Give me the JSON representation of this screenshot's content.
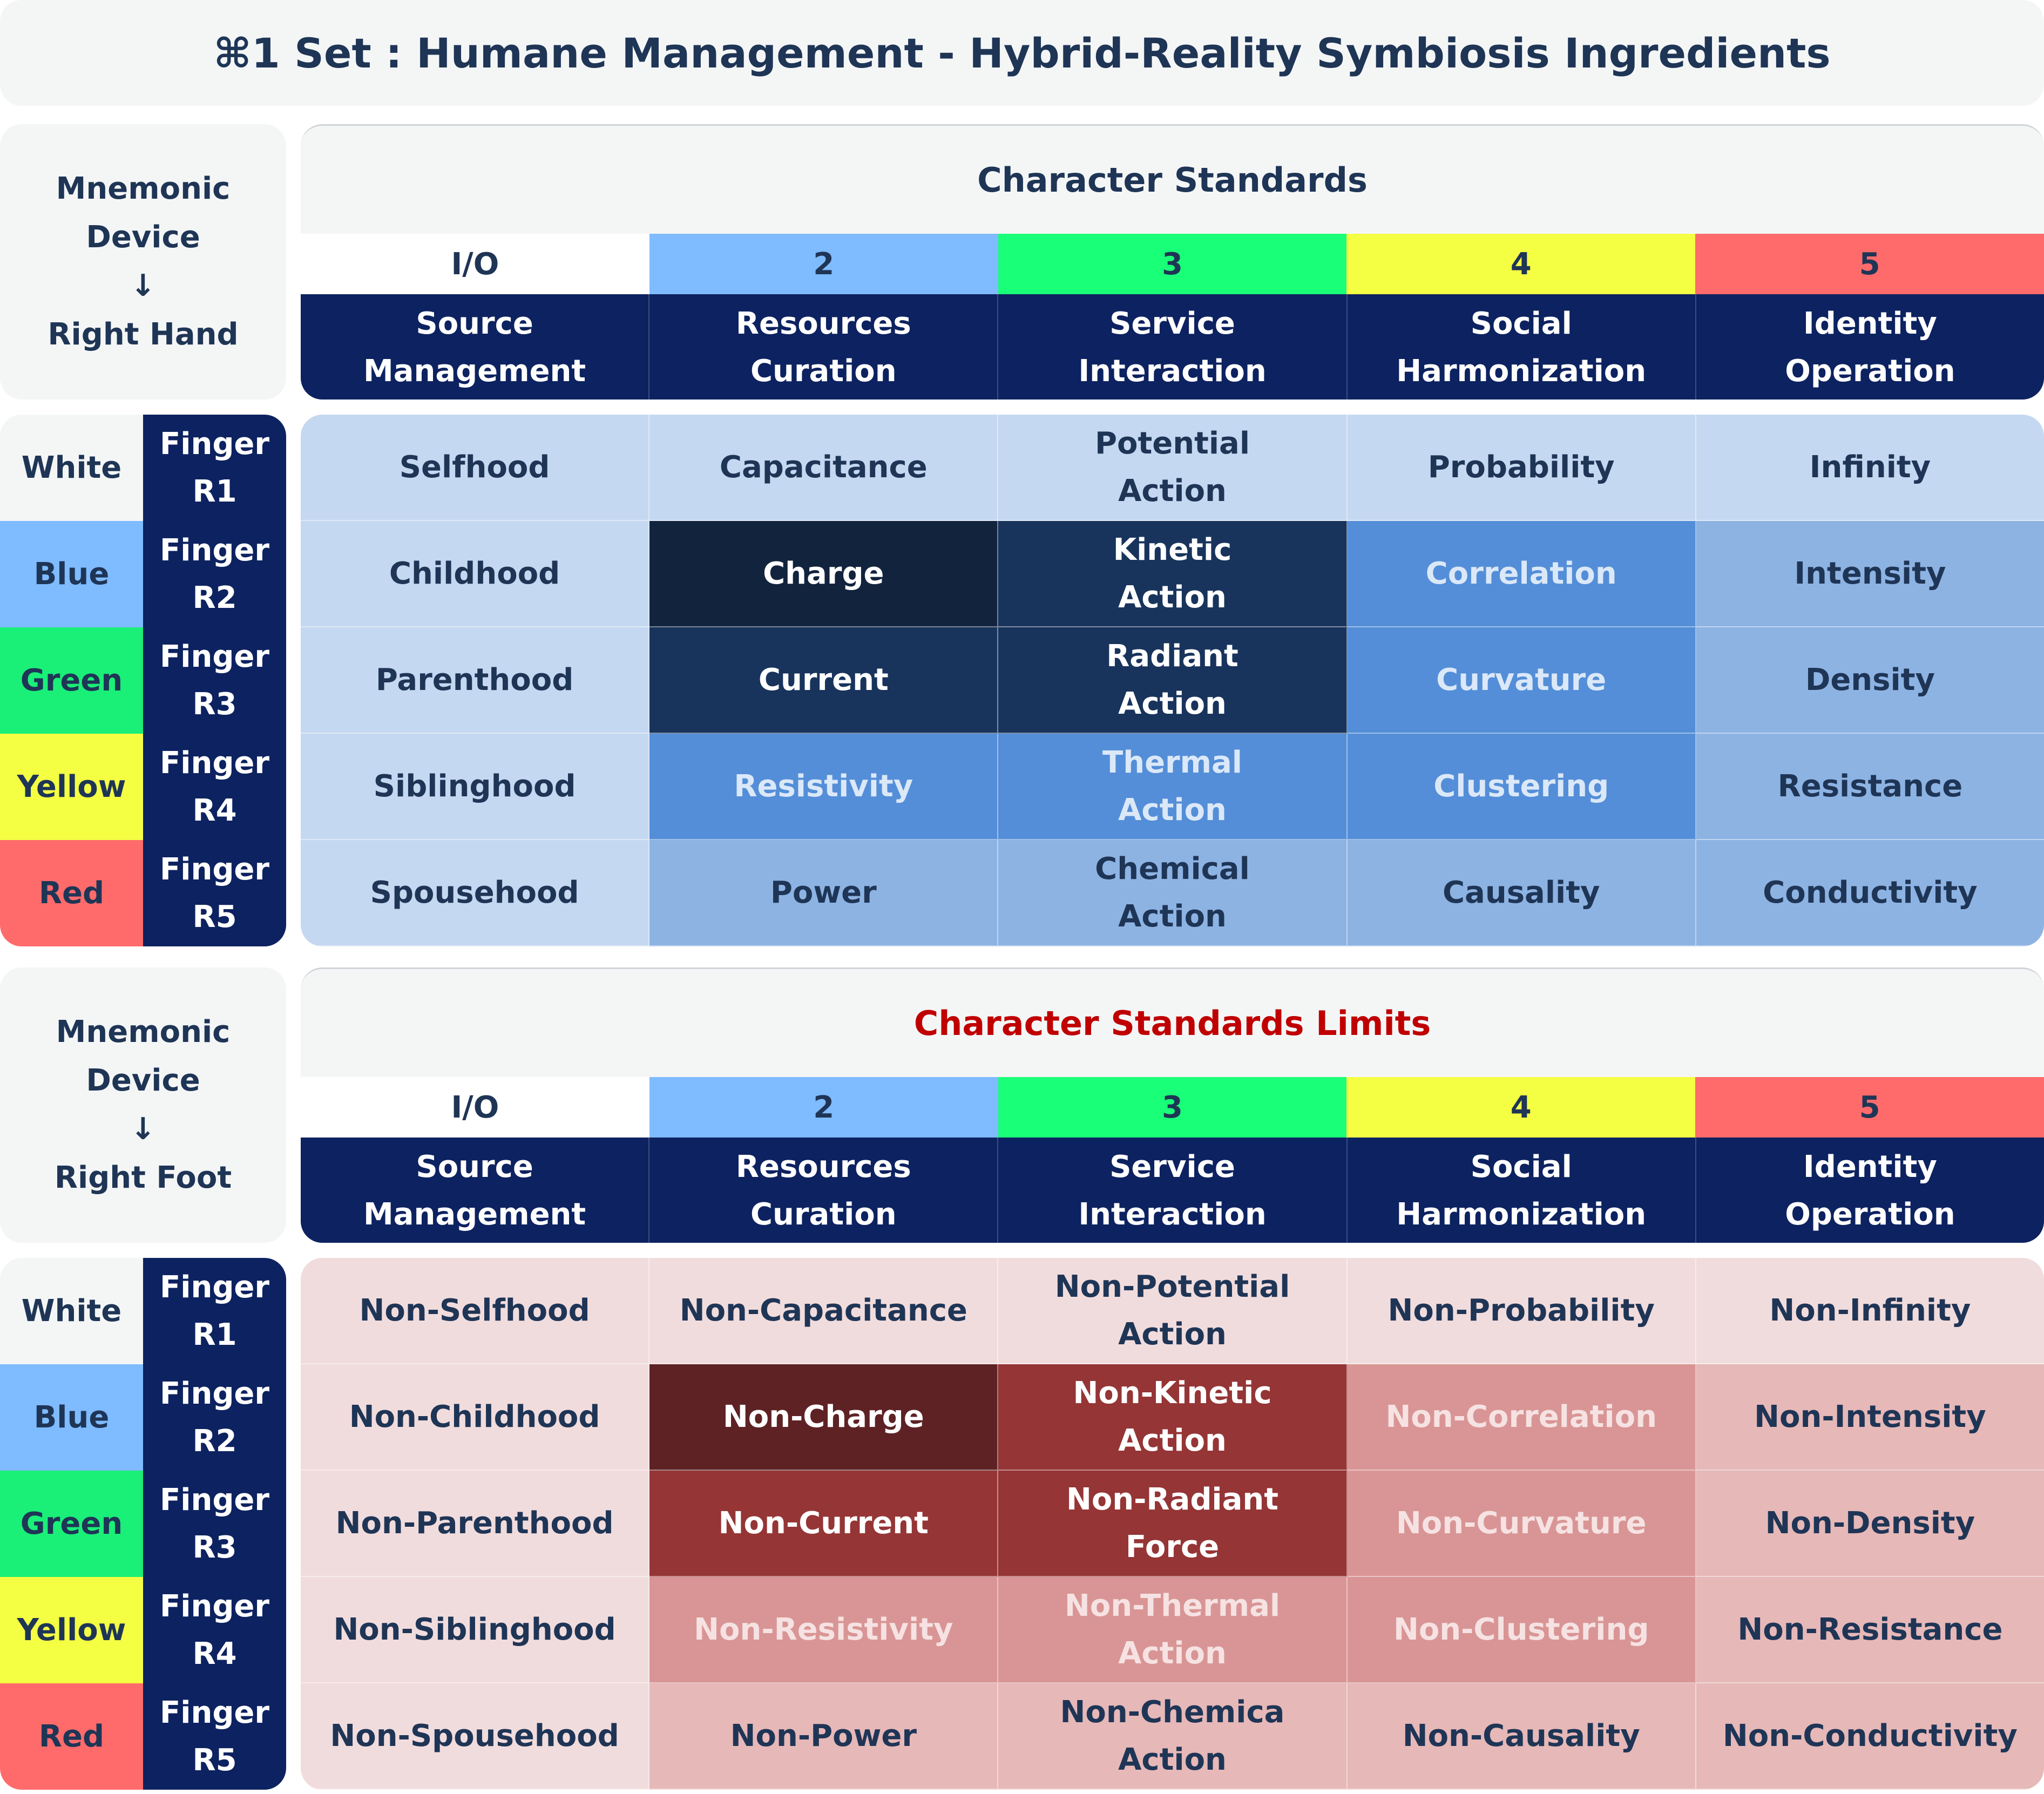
{
  "title": "⌘1 Set : Humane Management - Hybrid-Reality Symbiosis Ingredients",
  "sections": [
    {
      "mnemonic": [
        "Mnemonic",
        "Device",
        "↓",
        "Right Hand"
      ],
      "header_title": "Character Standards",
      "header_title_color": "#1f3556",
      "numbers": [
        "I/O",
        "2",
        "3",
        "4",
        "5"
      ],
      "number_colors": [
        "#ffffff",
        "#7fbbff",
        "#1aff78",
        "#f4ff44",
        "#ff6b6b"
      ],
      "columns": [
        [
          "Source",
          "Management"
        ],
        [
          "Resources",
          "Curation"
        ],
        [
          "Service",
          "Interaction"
        ],
        [
          "Social",
          "Harmonization"
        ],
        [
          "Identity",
          "Operation"
        ]
      ],
      "rows": [
        {
          "color": "White",
          "finger": [
            "Finger",
            "R1"
          ],
          "cells": [
            [
              "Selfhood"
            ],
            [
              "Capacitance"
            ],
            [
              "Potential",
              "Action"
            ],
            [
              "Probability"
            ],
            [
              "Infinity"
            ]
          ]
        },
        {
          "color": "Blue",
          "finger": [
            "Finger",
            "R2"
          ],
          "cells": [
            [
              "Childhood"
            ],
            [
              "Charge"
            ],
            [
              "Kinetic",
              "Action"
            ],
            [
              "Correlation"
            ],
            [
              "Intensity"
            ]
          ]
        },
        {
          "color": "Green",
          "finger": [
            "Finger",
            "R3"
          ],
          "cells": [
            [
              "Parenthood"
            ],
            [
              "Current"
            ],
            [
              "Radiant",
              "Action"
            ],
            [
              "Curvature"
            ],
            [
              "Density"
            ]
          ]
        },
        {
          "color": "Yellow",
          "finger": [
            "Finger",
            "R4"
          ],
          "cells": [
            [
              "Siblinghood"
            ],
            [
              "Resistivity"
            ],
            [
              "Thermal",
              "Action"
            ],
            [
              "Clustering"
            ],
            [
              "Resistance"
            ]
          ]
        },
        {
          "color": "Red",
          "finger": [
            "Finger",
            "R5"
          ],
          "cells": [
            [
              "Spousehood"
            ],
            [
              "Power"
            ],
            [
              "Chemical",
              "Action"
            ],
            [
              "Causality"
            ],
            [
              "Conductivity"
            ]
          ]
        }
      ],
      "cell_colors": [
        [
          [
            "#c5d8f1",
            "#1f3556"
          ],
          [
            "#c5d8f1",
            "#1f3556"
          ],
          [
            "#c5d8f1",
            "#1f3556"
          ],
          [
            "#c5d8f1",
            "#1f3556"
          ],
          [
            "#c5d8f1",
            "#1f3556"
          ]
        ],
        [
          [
            "#c5d8f1",
            "#1f3556"
          ],
          [
            "#12233e",
            "#ffffff"
          ],
          [
            "#18345c",
            "#ffffff"
          ],
          [
            "#548ed8",
            "#dbe8f8"
          ],
          [
            "#8db3e3",
            "#1f3556"
          ]
        ],
        [
          [
            "#c5d8f1",
            "#1f3556"
          ],
          [
            "#18345c",
            "#ffffff"
          ],
          [
            "#18345c",
            "#ffffff"
          ],
          [
            "#548ed8",
            "#dbe8f8"
          ],
          [
            "#8db3e3",
            "#1f3556"
          ]
        ],
        [
          [
            "#c5d8f1",
            "#1f3556"
          ],
          [
            "#548ed8",
            "#dbe8f8"
          ],
          [
            "#548ed8",
            "#dbe8f8"
          ],
          [
            "#548ed8",
            "#dbe8f8"
          ],
          [
            "#8db3e3",
            "#1f3556"
          ]
        ],
        [
          [
            "#c5d8f1",
            "#1f3556"
          ],
          [
            "#8db3e3",
            "#1f3556"
          ],
          [
            "#8db3e3",
            "#1f3556"
          ],
          [
            "#8db3e3",
            "#1f3556"
          ],
          [
            "#8db3e3",
            "#1f3556"
          ]
        ]
      ]
    },
    {
      "mnemonic": [
        "Mnemonic",
        "Device",
        "↓",
        "Right Foot"
      ],
      "header_title": "Character Standards Limits",
      "header_title_color": "#c00000",
      "numbers": [
        "I/O",
        "2",
        "3",
        "4",
        "5"
      ],
      "number_colors": [
        "#ffffff",
        "#7fbbff",
        "#1aff78",
        "#f4ff44",
        "#ff6b6b"
      ],
      "columns": [
        [
          "Source",
          "Management"
        ],
        [
          "Resources",
          "Curation"
        ],
        [
          "Service",
          "Interaction"
        ],
        [
          "Social",
          "Harmonization"
        ],
        [
          "Identity",
          "Operation"
        ]
      ],
      "rows": [
        {
          "color": "White",
          "finger": [
            "Finger",
            "R1"
          ],
          "cells": [
            [
              "Non-Selfhood"
            ],
            [
              "Non-Capacitance"
            ],
            [
              "Non-Potential",
              "Action"
            ],
            [
              "Non-Probability"
            ],
            [
              "Non-Infinity"
            ]
          ]
        },
        {
          "color": "Blue",
          "finger": [
            "Finger",
            "R2"
          ],
          "cells": [
            [
              "Non-Childhood"
            ],
            [
              "Non-Charge"
            ],
            [
              "Non-Kinetic",
              "Action"
            ],
            [
              "Non-Correlation"
            ],
            [
              "Non-Intensity"
            ]
          ]
        },
        {
          "color": "Green",
          "finger": [
            "Finger",
            "R3"
          ],
          "cells": [
            [
              "Non-Parenthood"
            ],
            [
              "Non-Current"
            ],
            [
              "Non-Radiant",
              "Force"
            ],
            [
              "Non-Curvature"
            ],
            [
              "Non-Density"
            ]
          ]
        },
        {
          "color": "Yellow",
          "finger": [
            "Finger",
            "R4"
          ],
          "cells": [
            [
              "Non-Siblinghood"
            ],
            [
              "Non-Resistivity"
            ],
            [
              "Non-Thermal",
              "Action"
            ],
            [
              "Non-Clustering"
            ],
            [
              "Non-Resistance"
            ]
          ]
        },
        {
          "color": "Red",
          "finger": [
            "Finger",
            "R5"
          ],
          "cells": [
            [
              "Non-Spousehood"
            ],
            [
              "Non-Power"
            ],
            [
              "Non-Chemica",
              "Action"
            ],
            [
              "Non-Causality"
            ],
            [
              "Non-Conductivity"
            ]
          ]
        }
      ],
      "cell_colors": [
        [
          [
            "#f1dcdd",
            "#1f3556"
          ],
          [
            "#f1dcdd",
            "#1f3556"
          ],
          [
            "#f1dcdd",
            "#1f3556"
          ],
          [
            "#f1dcdd",
            "#1f3556"
          ],
          [
            "#f1dcdd",
            "#1f3556"
          ]
        ],
        [
          [
            "#f1dcdd",
            "#1f3556"
          ],
          [
            "#5e2224",
            "#ffffff"
          ],
          [
            "#953536",
            "#ffffff"
          ],
          [
            "#d99595",
            "#f6e2e2"
          ],
          [
            "#e6b8b8",
            "#1f3556"
          ]
        ],
        [
          [
            "#f1dcdd",
            "#1f3556"
          ],
          [
            "#953536",
            "#ffffff"
          ],
          [
            "#953536",
            "#ffffff"
          ],
          [
            "#d99595",
            "#f6e2e2"
          ],
          [
            "#e6b8b8",
            "#1f3556"
          ]
        ],
        [
          [
            "#f1dcdd",
            "#1f3556"
          ],
          [
            "#d99595",
            "#f6e2e2"
          ],
          [
            "#d99595",
            "#f6e2e2"
          ],
          [
            "#d99595",
            "#f6e2e2"
          ],
          [
            "#e6b8b8",
            "#1f3556"
          ]
        ],
        [
          [
            "#f1dcdd",
            "#1f3556"
          ],
          [
            "#e6b8b8",
            "#1f3556"
          ],
          [
            "#e6b8b8",
            "#1f3556"
          ],
          [
            "#e6b8b8",
            "#1f3556"
          ],
          [
            "#e6b8b8",
            "#1f3556"
          ]
        ]
      ]
    }
  ],
  "row_colors": {
    "White": "#f4f6f6",
    "Blue": "#7fbbff",
    "Green": "#1aef78",
    "Yellow": "#f4ff44",
    "Red": "#ff6b6b"
  }
}
